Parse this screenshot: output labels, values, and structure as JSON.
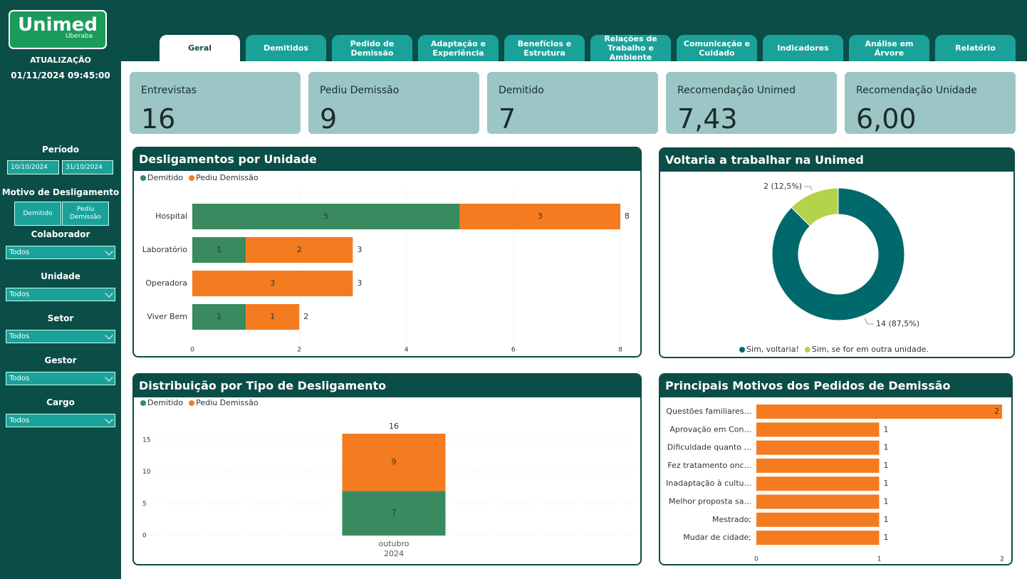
{
  "sidebar": {
    "logo": "Unimed",
    "logo_sub": "Uberaba",
    "update_label": "ATUALIZAÇÃO",
    "update_value": "01/11/2024 09:45:00",
    "period_label": "Período",
    "date_start": "10/10/2024",
    "date_end": "31/10/2024",
    "reason_label": "Motivo de Desligamento",
    "reason_buttons": [
      "Demitido",
      "Pediu Demissão"
    ],
    "filters": [
      {
        "label": "Colaborador",
        "value": "Todos"
      },
      {
        "label": "Unidade",
        "value": "Todos"
      },
      {
        "label": "Setor",
        "value": "Todos"
      },
      {
        "label": "Gestor",
        "value": "Todos"
      },
      {
        "label": "Cargo",
        "value": "Todos"
      }
    ]
  },
  "tabs": [
    "Geral",
    "Demitidos",
    "Pedido de Demissão",
    "Adaptação e Experiência",
    "Benefícios e Estrutura",
    "Relações de Trabalho e Ambiente",
    "Comunicação e Cuidado",
    "Indicadores",
    "Análise em Árvore",
    "Relatório"
  ],
  "active_tab": 0,
  "kpis": [
    {
      "label": "Entrevistas",
      "value": 16
    },
    {
      "label": "Pediu Demissão",
      "value": 9
    },
    {
      "label": "Demitido",
      "value": 7
    },
    {
      "label": "Recomendação Unimed",
      "value": 7.43,
      "value_label": "7,43"
    },
    {
      "label": "Recomendação Unidade",
      "value": 6.0,
      "value_label": "6,00"
    }
  ],
  "chart_data": [
    {
      "type": "bar",
      "orientation": "horizontal",
      "stacked": true,
      "title": "Desligamentos por Unidade",
      "categories": [
        "Hospital",
        "Laboratório",
        "Operadora",
        "Viver Bem"
      ],
      "series": [
        {
          "name": "Demitido",
          "color": "#3a8a60",
          "values": [
            5,
            1,
            null,
            1
          ]
        },
        {
          "name": "Pediu Demissão",
          "color": "#f47b20",
          "values": [
            3,
            2,
            3,
            1
          ]
        }
      ],
      "totals": [
        8,
        3,
        3,
        2
      ],
      "xlim": [
        0,
        8
      ],
      "xticks": [
        0,
        2,
        4,
        6,
        8
      ],
      "grid": true,
      "legend": "top-left"
    },
    {
      "type": "pie",
      "donut": true,
      "title": "Voltaria a trabalhar na Unimed",
      "categories": [
        "Sim, voltaria!",
        "Sim, se for em outra unidade."
      ],
      "values": [
        14,
        2
      ],
      "value_labels": [
        "14 (87,5%)",
        "2 (12,5%)"
      ],
      "colors": [
        "#00696b",
        "#b3d34b"
      ],
      "legend": "bottom"
    },
    {
      "type": "bar",
      "orientation": "vertical",
      "stacked": true,
      "title": "Distribuição por Tipo de Desligamento",
      "categories": [
        "outubro 2024"
      ],
      "series": [
        {
          "name": "Demitido",
          "color": "#3a8a60",
          "values": [
            7
          ]
        },
        {
          "name": "Pediu Demissão",
          "color": "#f47b20",
          "values": [
            9
          ]
        }
      ],
      "totals": [
        16
      ],
      "ylim": [
        0,
        17
      ],
      "yticks": [
        0,
        5,
        10,
        15
      ],
      "grid": true,
      "legend": "top-left"
    },
    {
      "type": "bar",
      "orientation": "horizontal",
      "stacked": false,
      "title": "Principais Motivos dos Pedidos de Demissão",
      "categories": [
        "Questões familiares...",
        "Aprovação em Con...",
        "Dificuldade quanto ...",
        "Fez tratamento onc...",
        "Inadaptação à cultu...",
        "Melhor proposta sa...",
        "Mestrado;",
        "Mudar de cidade;"
      ],
      "series": [
        {
          "name": null,
          "color": "#f47b20",
          "values": [
            2,
            1,
            1,
            1,
            1,
            1,
            1,
            1
          ]
        }
      ],
      "xlim": [
        0,
        2
      ],
      "xticks": [
        0,
        1,
        2
      ],
      "grid": false
    }
  ]
}
